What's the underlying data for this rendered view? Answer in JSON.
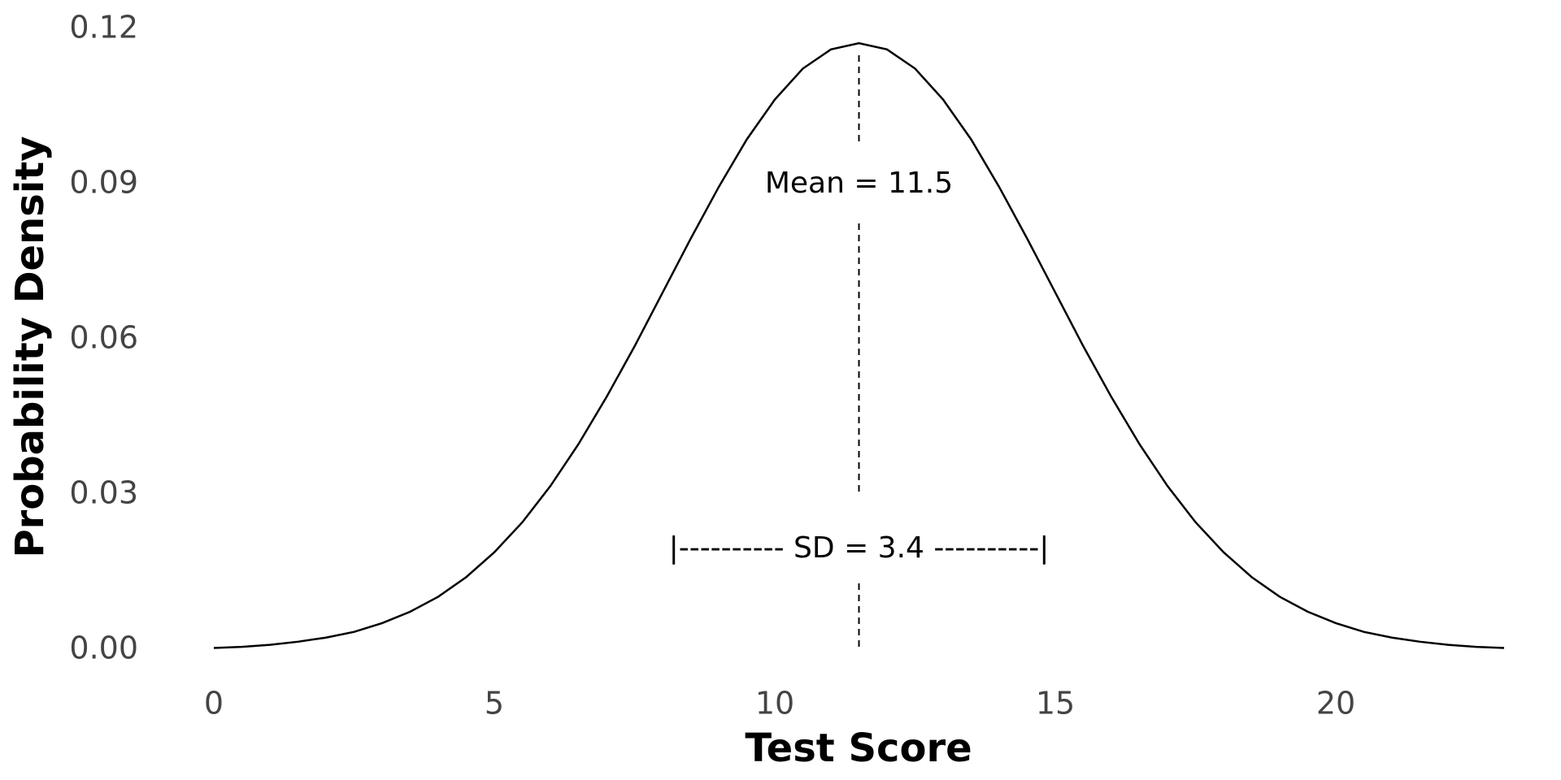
{
  "chart_data": {
    "type": "line",
    "x_label": "Test Score",
    "y_label": "Probability Density",
    "x": [
      0,
      0.5,
      1,
      1.5,
      2,
      2.5,
      3,
      3.5,
      4,
      4.5,
      5,
      5.5,
      6,
      6.5,
      7,
      7.5,
      8,
      8.5,
      9,
      9.5,
      10,
      10.5,
      11,
      11.5,
      12,
      12.5,
      13,
      13.5,
      14,
      14.5,
      15,
      15.5,
      16,
      16.5,
      17,
      17.5,
      18,
      18.5,
      19,
      19.5,
      20,
      20.5,
      21,
      21.5,
      22,
      22.5,
      23
    ],
    "series": [
      {
        "color": "#000000",
        "values": [
          0.0004,
          0.0006,
          0.001,
          0.0016,
          0.0024,
          0.0035,
          0.0052,
          0.0074,
          0.0103,
          0.0141,
          0.0189,
          0.0247,
          0.0317,
          0.0398,
          0.0489,
          0.0587,
          0.0691,
          0.0795,
          0.0895,
          0.0987,
          0.1064,
          0.1124,
          0.1161,
          0.1173,
          0.1161,
          0.1124,
          0.1064,
          0.0987,
          0.0895,
          0.0795,
          0.0691,
          0.0587,
          0.0489,
          0.0398,
          0.0317,
          0.0247,
          0.0189,
          0.0141,
          0.0103,
          0.0074,
          0.0052,
          0.0035,
          0.0024,
          0.0016,
          0.001,
          0.0006,
          0.0004
        ]
      }
    ],
    "mean": 11.5,
    "mean_label": "Mean = 11.5",
    "sd_label": "|---------- SD = 3.4 ----------|",
    "xlim": [
      0,
      23
    ],
    "ylim": [
      0,
      0.12
    ],
    "xticks": [
      0,
      5,
      10,
      15,
      20
    ],
    "yticks": [
      {
        "value": 0,
        "label": "0.00"
      },
      0.03,
      0.06,
      0.09,
      0.12
    ]
  }
}
